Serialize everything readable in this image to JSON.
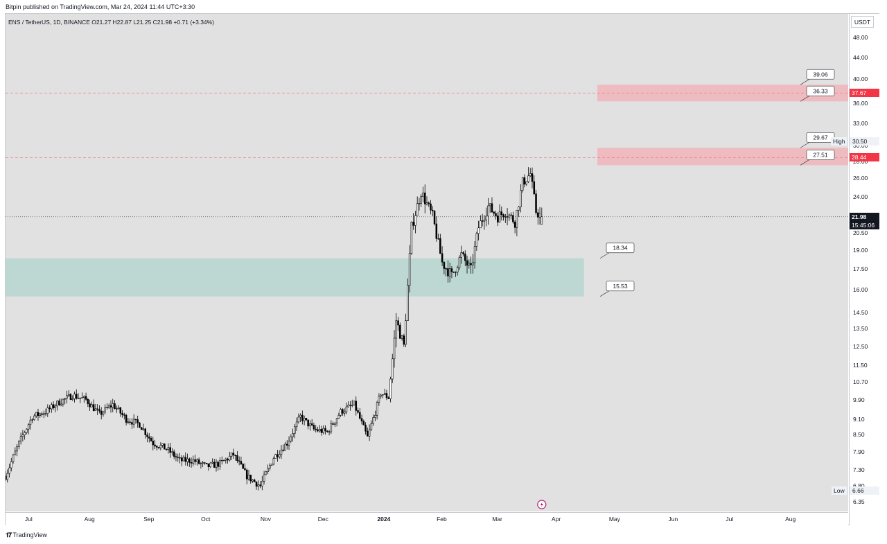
{
  "header": {
    "published": "Bitpin published on TradingView.com, Mar 24, 2024 11:44 UTC+3:30"
  },
  "legend": {
    "text": "ENS / TetherUS, 1D, BINANCE  O21.27  H22.87  L21.25  C21.98  +0.71 (+3.34%)"
  },
  "footer": {
    "brand": "TradingView"
  },
  "colors": {
    "up": "#ffffff",
    "down": "#000000",
    "wick": "#000000",
    "resistance_zone": "#f0b7bc",
    "support_zone": "#b9d6d2",
    "dashed_line": "#f2808a",
    "price_label_red": "#f23645",
    "current_label": "#131722"
  },
  "chart_data": {
    "type": "candlestick",
    "symbol": "ENS / TetherUS",
    "timeframe": "1D",
    "exchange": "BINANCE",
    "unit": "USDT",
    "scale": "log",
    "ylim": [
      6.0,
      54.0
    ],
    "y_ticks": [
      "48.00",
      "44.00",
      "40.00",
      "36.00",
      "33.00",
      "30.00",
      "28.00",
      "26.00",
      "24.00",
      "20.50",
      "19.00",
      "17.50",
      "16.00",
      "14.50",
      "13.50",
      "12.50",
      "11.50",
      "10.70",
      "9.90",
      "9.10",
      "8.50",
      "7.90",
      "7.30",
      "6.80",
      "6.35"
    ],
    "x_ticks": [
      "Jul",
      "Aug",
      "Sep",
      "Oct",
      "Nov",
      "Dec",
      "2024",
      "Feb",
      "Mar",
      "Apr",
      "May",
      "Jun",
      "Jul",
      "Aug"
    ],
    "x_range": [
      "2023-06-18",
      "2024-08-31"
    ],
    "ohlc_last": {
      "open": 21.27,
      "high": 22.87,
      "low": 21.25,
      "close": 21.98,
      "change": "+0.71 (+3.34%)"
    },
    "close_series": {
      "start": "2023-06-18",
      "knots": [
        [
          "2023-06-18",
          7.1
        ],
        [
          "2023-06-25",
          8.2
        ],
        [
          "2023-07-02",
          9.2
        ],
        [
          "2023-07-09",
          9.4
        ],
        [
          "2023-07-16",
          9.8
        ],
        [
          "2023-07-23",
          10.1
        ],
        [
          "2023-07-30",
          9.9
        ],
        [
          "2023-08-06",
          9.3
        ],
        [
          "2023-08-13",
          9.7
        ],
        [
          "2023-08-20",
          9.1
        ],
        [
          "2023-08-27",
          8.9
        ],
        [
          "2023-09-03",
          8.2
        ],
        [
          "2023-09-10",
          8.0
        ],
        [
          "2023-09-17",
          7.6
        ],
        [
          "2023-09-24",
          7.6
        ],
        [
          "2023-10-01",
          7.4
        ],
        [
          "2023-10-08",
          7.5
        ],
        [
          "2023-10-15",
          7.8
        ],
        [
          "2023-10-22",
          7.1
        ],
        [
          "2023-10-29",
          6.8
        ],
        [
          "2023-11-05",
          7.7
        ],
        [
          "2023-11-12",
          8.2
        ],
        [
          "2023-11-19",
          9.2
        ],
        [
          "2023-11-26",
          8.7
        ],
        [
          "2023-12-03",
          8.6
        ],
        [
          "2023-12-10",
          9.4
        ],
        [
          "2023-12-17",
          9.7
        ],
        [
          "2023-12-24",
          8.4
        ],
        [
          "2023-12-31",
          10.2
        ],
        [
          "2024-01-04",
          10.0
        ],
        [
          "2024-01-08",
          14.0
        ],
        [
          "2024-01-12",
          12.5
        ],
        [
          "2024-01-16",
          21.0
        ],
        [
          "2024-01-21",
          24.5
        ],
        [
          "2024-01-27",
          22.0
        ],
        [
          "2024-02-01",
          18.0
        ],
        [
          "2024-02-06",
          17.0
        ],
        [
          "2024-02-11",
          18.6
        ],
        [
          "2024-02-16",
          17.4
        ],
        [
          "2024-02-20",
          21.0
        ],
        [
          "2024-02-25",
          23.0
        ],
        [
          "2024-03-01",
          22.0
        ],
        [
          "2024-03-05",
          22.5
        ],
        [
          "2024-03-10",
          21.5
        ],
        [
          "2024-03-14",
          25.5
        ],
        [
          "2024-03-18",
          26.5
        ],
        [
          "2024-03-21",
          22.5
        ],
        [
          "2024-03-24",
          21.98
        ]
      ]
    },
    "zones": [
      {
        "kind": "resistance",
        "low": 36.33,
        "high": 39.06,
        "start": "2024-04-22"
      },
      {
        "kind": "resistance",
        "low": 27.51,
        "high": 29.67,
        "start": "2024-04-22"
      },
      {
        "kind": "support",
        "low": 15.53,
        "high": 18.34,
        "start": "2023-06-18",
        "end": "2024-04-15"
      }
    ],
    "callouts": [
      {
        "text": "39.06",
        "price": 39.06
      },
      {
        "text": "36.33",
        "price": 36.33
      },
      {
        "text": "29.67",
        "price": 29.67
      },
      {
        "text": "27.51",
        "price": 27.51
      },
      {
        "text": "18.34",
        "price": 18.34
      },
      {
        "text": "15.53",
        "price": 15.53
      }
    ],
    "horizontal_lines": [
      {
        "price": 37.67,
        "style": "dashed",
        "color": "red"
      },
      {
        "price": 28.44,
        "style": "dashed",
        "color": "red"
      },
      {
        "price": 21.98,
        "style": "dotted",
        "color": "gray"
      }
    ],
    "price_labels": [
      {
        "text": "37.67",
        "price": 37.67,
        "kind": "red"
      },
      {
        "text": "28.44",
        "price": 28.44,
        "kind": "red"
      },
      {
        "text": "21.98",
        "price": 21.98,
        "kind": "current",
        "countdown": "15:45:06"
      },
      {
        "text": "30.50",
        "price": 30.5,
        "kind": "high",
        "tag": "High"
      },
      {
        "text": "6.66",
        "price": 6.66,
        "kind": "low",
        "tag": "Low"
      }
    ],
    "title": "",
    "xlabel": "",
    "ylabel": ""
  }
}
